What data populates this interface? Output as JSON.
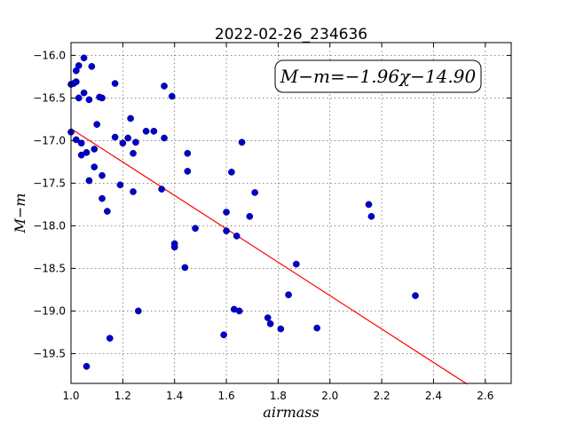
{
  "chart_data": {
    "type": "scatter",
    "title": "2022-02-26_234636",
    "xlabel": "airmass",
    "ylabel": "M−m",
    "xlim": [
      1.0,
      2.7
    ],
    "ylim": [
      -19.85,
      -15.85
    ],
    "x_ticks": [
      "1.0",
      "1.2",
      "1.4",
      "1.6",
      "1.8",
      "2.0",
      "2.2",
      "2.4",
      "2.6"
    ],
    "y_ticks": [
      "−16.0",
      "−16.5",
      "−17.0",
      "−17.5",
      "−18.0",
      "−18.5",
      "−19.0",
      "−19.5"
    ],
    "grid": true,
    "annotation": "M−m=−1.96χ−14.90",
    "fit": {
      "slope": -1.96,
      "intercept": -14.9,
      "x_range": [
        1.0,
        2.53
      ],
      "color": "#ff0000"
    },
    "point_color": "#0000cc",
    "points": [
      [
        1.0,
        -16.34
      ],
      [
        1.0,
        -16.9
      ],
      [
        1.01,
        -16.33
      ],
      [
        1.02,
        -16.18
      ],
      [
        1.02,
        -16.31
      ],
      [
        1.03,
        -16.12
      ],
      [
        1.03,
        -16.5
      ],
      [
        1.02,
        -16.99
      ],
      [
        1.04,
        -17.03
      ],
      [
        1.04,
        -17.17
      ],
      [
        1.05,
        -16.03
      ],
      [
        1.05,
        -16.44
      ],
      [
        1.06,
        -17.14
      ],
      [
        1.06,
        -19.65
      ],
      [
        1.07,
        -16.52
      ],
      [
        1.07,
        -17.47
      ],
      [
        1.08,
        -16.13
      ],
      [
        1.09,
        -17.1
      ],
      [
        1.09,
        -17.31
      ],
      [
        1.1,
        -16.81
      ],
      [
        1.11,
        -16.49
      ],
      [
        1.12,
        -16.5
      ],
      [
        1.12,
        -17.41
      ],
      [
        1.12,
        -17.68
      ],
      [
        1.14,
        -17.83
      ],
      [
        1.15,
        -19.32
      ],
      [
        1.17,
        -16.33
      ],
      [
        1.17,
        -16.96
      ],
      [
        1.19,
        -17.52
      ],
      [
        1.2,
        -17.03
      ],
      [
        1.22,
        -16.97
      ],
      [
        1.23,
        -16.74
      ],
      [
        1.24,
        -17.15
      ],
      [
        1.24,
        -17.6
      ],
      [
        1.25,
        -17.02
      ],
      [
        1.26,
        -19.0
      ],
      [
        1.29,
        -16.89
      ],
      [
        1.32,
        -16.89
      ],
      [
        1.35,
        -17.57
      ],
      [
        1.36,
        -16.36
      ],
      [
        1.36,
        -16.97
      ],
      [
        1.39,
        -16.48
      ],
      [
        1.4,
        -18.25
      ],
      [
        1.4,
        -18.21
      ],
      [
        1.44,
        -18.49
      ],
      [
        1.45,
        -17.15
      ],
      [
        1.45,
        -17.36
      ],
      [
        1.48,
        -18.03
      ],
      [
        1.59,
        -19.28
      ],
      [
        1.6,
        -17.84
      ],
      [
        1.6,
        -18.06
      ],
      [
        1.62,
        -17.37
      ],
      [
        1.63,
        -18.98
      ],
      [
        1.64,
        -18.12
      ],
      [
        1.65,
        -19.0
      ],
      [
        1.66,
        -17.02
      ],
      [
        1.69,
        -17.89
      ],
      [
        1.71,
        -17.61
      ],
      [
        1.76,
        -19.08
      ],
      [
        1.77,
        -19.15
      ],
      [
        1.81,
        -19.21
      ],
      [
        1.84,
        -18.81
      ],
      [
        1.87,
        -18.45
      ],
      [
        1.95,
        -19.2
      ],
      [
        2.15,
        -17.75
      ],
      [
        2.16,
        -17.89
      ],
      [
        2.33,
        -18.82
      ]
    ]
  }
}
